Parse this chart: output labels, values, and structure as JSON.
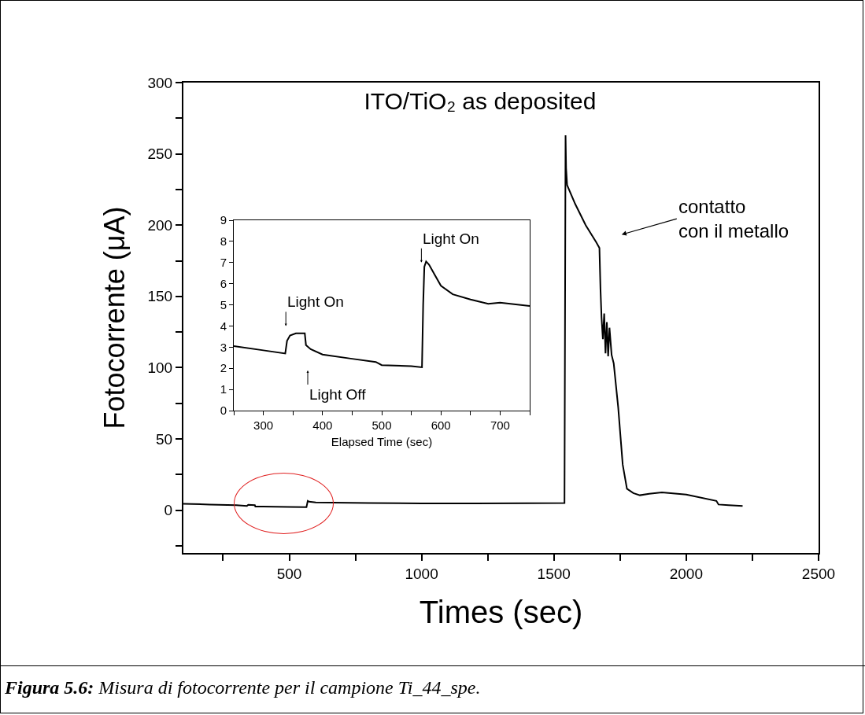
{
  "chart_data": [
    {
      "type": "line",
      "title": "ITO/TiO₂ as deposited",
      "xlabel": "Times (sec)",
      "ylabel": "Fotocorrente (μA)",
      "series": [
        {
          "color": "#000000",
          "x": [
            100,
            200,
            300,
            340,
            345,
            370,
            372,
            400,
            500,
            565,
            570,
            575,
            600,
            800,
            1000,
            1200,
            1400,
            1540,
            1544,
            1546,
            1550,
            1580,
            1620,
            1660,
            1672,
            1676,
            1680,
            1685,
            1690,
            1695,
            1700,
            1705,
            1710,
            1718,
            1726,
            1743,
            1760,
            1776,
            1800,
            1825,
            1860,
            1908,
            2000,
            2114,
            2122,
            2160,
            2213
          ],
          "values": [
            4.5,
            4,
            3.5,
            3,
            3.8,
            3.5,
            2.5,
            2.5,
            2.3,
            2.2,
            6.5,
            6,
            5.5,
            5,
            4.8,
            4.8,
            4.9,
            5,
            263,
            240,
            228,
            215,
            200,
            188,
            184,
            155,
            135,
            120,
            138,
            110,
            132,
            108,
            128,
            109,
            103,
            72,
            32,
            15,
            12,
            10.5,
            11.5,
            12.5,
            11,
            6.5,
            4,
            3.5,
            3
          ]
        }
      ],
      "xlim": [
        100,
        2500
      ],
      "xticks": [
        {
          "value": 250,
          "label": null
        },
        500,
        {
          "value": 750,
          "label": null
        },
        1000,
        {
          "value": 1250,
          "label": null
        },
        1500,
        {
          "value": 1750,
          "label": null
        },
        2000,
        {
          "value": 2250,
          "label": null
        },
        2500
      ],
      "ylim": [
        -30,
        300
      ],
      "yticks": [
        {
          "value": -25,
          "label": null
        },
        0,
        {
          "value": 25,
          "label": null
        },
        50,
        {
          "value": 75,
          "label": null
        },
        100,
        {
          "value": 125,
          "label": null
        },
        150,
        {
          "value": 175,
          "label": null
        },
        200,
        {
          "value": 225,
          "label": null
        },
        250,
        {
          "value": 275,
          "label": null
        },
        300
      ],
      "marker": "none",
      "line_style": "solid",
      "annotations": [
        "contatto\ncon il metallo",
        "Figura 5.6: Misura di fotocorrente per il campione Ti_44_spe."
      ]
    },
    {
      "type": "line",
      "xlabel": "Elapsed Time (sec)",
      "series": [
        {
          "color": "#000000",
          "x": [
            250,
            300,
            337,
            340,
            345,
            355,
            370,
            372,
            380,
            400,
            450,
            490,
            500,
            550,
            568,
            570,
            572,
            575,
            580,
            590,
            600,
            620,
            650,
            680,
            700,
            750
          ],
          "values": [
            3.05,
            2.85,
            2.7,
            3.3,
            3.55,
            3.65,
            3.65,
            3.1,
            2.9,
            2.65,
            2.45,
            2.3,
            2.15,
            2.1,
            2.05,
            5,
            6.8,
            7.05,
            6.9,
            6.4,
            5.9,
            5.5,
            5.25,
            5.05,
            5.1,
            4.95
          ]
        }
      ],
      "xlim": [
        250,
        750
      ],
      "xticks": [
        {
          "value": 250,
          "label": null
        },
        300,
        {
          "value": 350,
          "label": null
        },
        400,
        {
          "value": 450,
          "label": null
        },
        500,
        {
          "value": 550,
          "label": null
        },
        600,
        {
          "value": 650,
          "label": null
        },
        700,
        {
          "value": 750,
          "label": null
        }
      ],
      "ylim": [
        0,
        9
      ],
      "yticks": [
        0,
        1,
        2,
        3,
        4,
        5,
        6,
        7,
        8,
        9
      ],
      "marker": "none",
      "line_style": "solid",
      "annotations": [
        {
          "text": "Light On",
          "x": 338,
          "y": 4.0
        },
        {
          "text": "Light Off",
          "x": 375,
          "y": 1.9
        },
        {
          "text": "Light On",
          "x": 567,
          "y": 7.0
        }
      ]
    }
  ]
}
